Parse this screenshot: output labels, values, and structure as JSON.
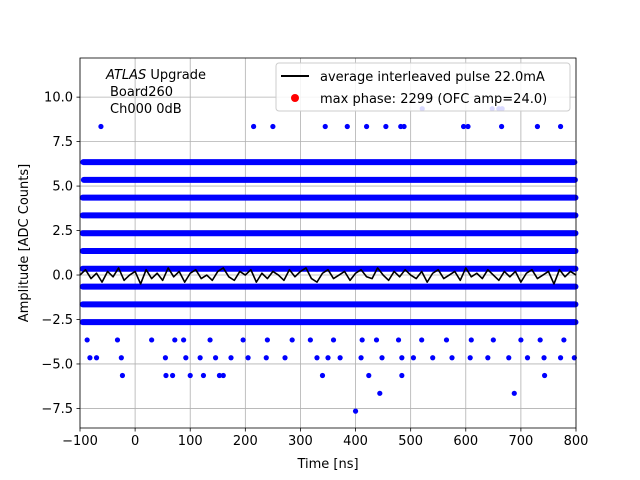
{
  "chart_data": {
    "type": "scatter",
    "xlabel": "Time [ns]",
    "ylabel": "Amplitude [ADC Counts]",
    "xlim": [
      -100,
      800
    ],
    "ylim": [
      -8.6,
      12.2
    ],
    "grid": true,
    "x_ticks": [
      -100,
      0,
      100,
      200,
      300,
      400,
      500,
      600,
      700,
      800
    ],
    "x_tick_labels": [
      "−100",
      "0",
      "100",
      "200",
      "300",
      "400",
      "500",
      "600",
      "700",
      "800"
    ],
    "y_ticks": [
      -7.5,
      -5.0,
      -2.5,
      0.0,
      2.5,
      5.0,
      7.5,
      10.0
    ],
    "y_tick_labels": [
      "−7.5",
      "−5.0",
      "−2.5",
      "0.0",
      "2.5",
      "5.0",
      "7.5",
      "10.0"
    ],
    "annotation": {
      "line1_italic": "ATLAS",
      "line1_rest": " Upgrade",
      "line2": "Board260",
      "line3": "Ch000 0dB"
    },
    "legend": {
      "placement": "upper right",
      "entries": [
        {
          "label": "average interleaved pulse 22.0mA",
          "color": "#000000",
          "marker": "line"
        },
        {
          "label": "max phase: 2299 (OFC amp=24.0)",
          "color": "#ff0000",
          "marker": "dot"
        }
      ]
    },
    "scatter_series": {
      "color": "#0000ff",
      "levels": [
        {
          "y": 6.35,
          "x_start": -94,
          "x_end": 797
        },
        {
          "y": 5.35,
          "x_start": -93,
          "x_end": 798
        },
        {
          "y": 4.35,
          "x_start": -95,
          "x_end": 799
        },
        {
          "y": 3.35,
          "x_start": -95,
          "x_end": 799
        },
        {
          "y": 2.35,
          "x_start": -95,
          "x_end": 799
        },
        {
          "y": 1.35,
          "x_start": -95,
          "x_end": 799
        },
        {
          "y": 0.35,
          "x_start": -95,
          "x_end": 799
        },
        {
          "y": -0.65,
          "x_start": -95,
          "x_end": 799
        },
        {
          "y": -1.65,
          "x_start": -95,
          "x_end": 799
        },
        {
          "y": -2.65,
          "x_start": -95,
          "x_end": 799
        }
      ],
      "points": [
        {
          "x": 521,
          "y": 9.35
        },
        {
          "x": 648,
          "y": 9.35
        },
        {
          "x": 660,
          "y": 9.35
        },
        {
          "x": 666,
          "y": 9.35
        },
        {
          "x": -62,
          "y": 8.35
        },
        {
          "x": 215,
          "y": 8.35
        },
        {
          "x": 250,
          "y": 8.35
        },
        {
          "x": 345,
          "y": 8.35
        },
        {
          "x": 385,
          "y": 8.35
        },
        {
          "x": 420,
          "y": 8.35
        },
        {
          "x": 455,
          "y": 8.35
        },
        {
          "x": 482,
          "y": 8.35
        },
        {
          "x": 488,
          "y": 8.35
        },
        {
          "x": 596,
          "y": 8.35
        },
        {
          "x": 604,
          "y": 8.35
        },
        {
          "x": 665,
          "y": 8.35
        },
        {
          "x": 730,
          "y": 8.35
        },
        {
          "x": 772,
          "y": 8.35
        },
        {
          "x": -87,
          "y": -3.65
        },
        {
          "x": -32,
          "y": -3.65
        },
        {
          "x": 30,
          "y": -3.65
        },
        {
          "x": 72,
          "y": -3.65
        },
        {
          "x": 88,
          "y": -3.65
        },
        {
          "x": 136,
          "y": -3.65
        },
        {
          "x": 196,
          "y": -3.65
        },
        {
          "x": 240,
          "y": -3.65
        },
        {
          "x": 285,
          "y": -3.65
        },
        {
          "x": 318,
          "y": -3.65
        },
        {
          "x": 360,
          "y": -3.65
        },
        {
          "x": 412,
          "y": -3.65
        },
        {
          "x": 438,
          "y": -3.65
        },
        {
          "x": 478,
          "y": -3.65
        },
        {
          "x": 520,
          "y": -3.65
        },
        {
          "x": 565,
          "y": -3.65
        },
        {
          "x": 610,
          "y": -3.65
        },
        {
          "x": 650,
          "y": -3.65
        },
        {
          "x": 700,
          "y": -3.65
        },
        {
          "x": 735,
          "y": -3.65
        },
        {
          "x": 778,
          "y": -3.65
        },
        {
          "x": -82,
          "y": -4.65
        },
        {
          "x": -70,
          "y": -4.65
        },
        {
          "x": -25,
          "y": -4.65
        },
        {
          "x": 55,
          "y": -4.65
        },
        {
          "x": 92,
          "y": -4.65
        },
        {
          "x": 118,
          "y": -4.65
        },
        {
          "x": 146,
          "y": -4.65
        },
        {
          "x": 174,
          "y": -4.65
        },
        {
          "x": 205,
          "y": -4.65
        },
        {
          "x": 238,
          "y": -4.65
        },
        {
          "x": 272,
          "y": -4.65
        },
        {
          "x": 330,
          "y": -4.65
        },
        {
          "x": 350,
          "y": -4.65
        },
        {
          "x": 372,
          "y": -4.65
        },
        {
          "x": 410,
          "y": -4.65
        },
        {
          "x": 448,
          "y": -4.65
        },
        {
          "x": 484,
          "y": -4.65
        },
        {
          "x": 505,
          "y": -4.65
        },
        {
          "x": 540,
          "y": -4.65
        },
        {
          "x": 575,
          "y": -4.65
        },
        {
          "x": 608,
          "y": -4.65
        },
        {
          "x": 640,
          "y": -4.65
        },
        {
          "x": 678,
          "y": -4.65
        },
        {
          "x": 712,
          "y": -4.65
        },
        {
          "x": 742,
          "y": -4.65
        },
        {
          "x": 772,
          "y": -4.65
        },
        {
          "x": 797,
          "y": -4.65
        },
        {
          "x": -23,
          "y": -5.65
        },
        {
          "x": 56,
          "y": -5.65
        },
        {
          "x": 68,
          "y": -5.65
        },
        {
          "x": 100,
          "y": -5.65
        },
        {
          "x": 124,
          "y": -5.65
        },
        {
          "x": 153,
          "y": -5.65
        },
        {
          "x": 160,
          "y": -5.65
        },
        {
          "x": 340,
          "y": -5.65
        },
        {
          "x": 424,
          "y": -5.65
        },
        {
          "x": 484,
          "y": -5.65
        },
        {
          "x": 743,
          "y": -5.65
        },
        {
          "x": 444,
          "y": -6.65
        },
        {
          "x": 688,
          "y": -6.65
        },
        {
          "x": 400,
          "y": -7.65
        }
      ]
    },
    "line_series": {
      "name": "average interleaved pulse 22.0mA",
      "color": "#000000",
      "x": [
        -100,
        -90,
        -80,
        -70,
        -60,
        -50,
        -40,
        -30,
        -20,
        -10,
        0,
        10,
        20,
        30,
        40,
        50,
        60,
        70,
        80,
        90,
        100,
        110,
        120,
        130,
        140,
        150,
        160,
        170,
        180,
        190,
        200,
        210,
        220,
        230,
        240,
        250,
        260,
        270,
        280,
        290,
        300,
        310,
        320,
        330,
        340,
        350,
        360,
        370,
        380,
        390,
        400,
        410,
        420,
        430,
        440,
        450,
        460,
        470,
        480,
        490,
        500,
        510,
        520,
        530,
        540,
        550,
        560,
        570,
        580,
        590,
        600,
        610,
        620,
        630,
        640,
        650,
        660,
        670,
        680,
        690,
        700,
        710,
        720,
        730,
        740,
        750,
        760,
        770,
        780,
        790,
        800
      ],
      "y": [
        0.0,
        0.3,
        -0.2,
        0.1,
        -0.4,
        0.2,
        -0.1,
        0.4,
        -0.3,
        0.0,
        0.2,
        -0.5,
        0.3,
        -0.2,
        0.1,
        -0.3,
        0.4,
        -0.1,
        0.2,
        -0.4,
        0.1,
        0.3,
        -0.2,
        0.0,
        -0.3,
        0.2,
        0.4,
        -0.1,
        -0.3,
        0.2,
        0.0,
        0.3,
        -0.4,
        0.1,
        -0.2,
        0.2,
        0.0,
        -0.3,
        0.3,
        -0.1,
        0.2,
        0.4,
        -0.2,
        -0.4,
        0.1,
        0.3,
        -0.2,
        0.0,
        0.2,
        -0.3,
        0.1,
        0.3,
        -0.1,
        -0.2,
        0.4,
        0.0,
        -0.3,
        0.2,
        -0.1,
        0.3,
        0.0,
        -0.2,
        0.2,
        -0.4,
        0.1,
        0.3,
        -0.2,
        0.0,
        0.2,
        -0.3,
        0.4,
        -0.1,
        0.1,
        -0.2,
        0.3,
        0.0,
        -0.3,
        0.2,
        -0.1,
        0.2,
        -0.4,
        0.1,
        0.3,
        -0.2,
        0.0,
        0.2,
        -0.5,
        0.3,
        -0.1,
        0.2,
        0.0
      ]
    }
  }
}
